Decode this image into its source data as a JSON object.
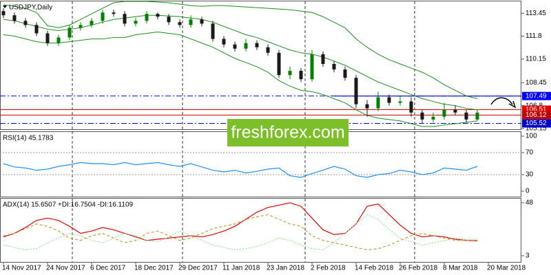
{
  "chart_data": [
    {
      "type": "candlestick",
      "title": "USDJPY,Daily",
      "watermark": "freshforex.com",
      "x": [
        0,
        2,
        4,
        6,
        8,
        10,
        12,
        14,
        16,
        18,
        20,
        22,
        24,
        26,
        28,
        30,
        32,
        34,
        36,
        38,
        40,
        42,
        44,
        46,
        48,
        50,
        52,
        54,
        56,
        58,
        60,
        62,
        64,
        66,
        68,
        70,
        72,
        74,
        76,
        78,
        80,
        82,
        84,
        86
      ],
      "open": [
        113.6,
        113.3,
        112.9,
        112.6,
        112.0,
        111.3,
        111.7,
        112.4,
        112.6,
        112.9,
        113.5,
        113.4,
        112.7,
        112.9,
        113.4,
        113.2,
        112.8,
        112.6,
        113.0,
        112.7,
        111.6,
        111.2,
        110.9,
        111.3,
        111.0,
        110.6,
        109.0,
        109.3,
        108.7,
        110.5,
        109.8,
        109.4,
        108.8,
        106.9,
        106.6,
        107.4,
        107.0,
        107.1,
        106.3,
        105.8,
        106.0,
        106.5,
        106.3,
        105.8
      ],
      "high": [
        113.8,
        113.5,
        113.1,
        112.8,
        112.2,
        111.9,
        112.6,
        112.8,
        113.1,
        113.7,
        113.7,
        113.6,
        113.1,
        113.6,
        113.5,
        113.4,
        113.0,
        113.3,
        113.2,
        112.9,
        111.8,
        111.4,
        111.6,
        111.5,
        111.2,
        110.8,
        109.6,
        109.5,
        110.8,
        110.7,
        110.0,
        109.6,
        109.0,
        107.2,
        107.8,
        107.6,
        107.5,
        107.4,
        106.5,
        106.3,
        107.0,
        106.8,
        106.5,
        106.5
      ],
      "low": [
        113.1,
        112.7,
        112.4,
        111.8,
        111.1,
        111.1,
        111.5,
        112.2,
        112.4,
        112.7,
        113.2,
        112.5,
        112.5,
        112.7,
        113.0,
        112.6,
        112.4,
        112.4,
        112.5,
        111.4,
        111.0,
        110.7,
        110.7,
        110.8,
        110.4,
        108.8,
        108.7,
        108.5,
        108.5,
        109.6,
        109.2,
        108.6,
        106.6,
        106.0,
        106.4,
        106.8,
        106.8,
        106.0,
        105.5,
        105.6,
        105.8,
        106.1,
        105.6,
        105.7
      ],
      "close": [
        113.3,
        112.9,
        112.6,
        112.0,
        111.3,
        111.7,
        112.4,
        112.6,
        112.9,
        113.5,
        113.4,
        112.7,
        112.9,
        113.4,
        113.2,
        112.8,
        112.6,
        113.0,
        112.7,
        111.6,
        111.2,
        110.9,
        111.3,
        111.0,
        110.6,
        109.0,
        109.3,
        108.7,
        110.5,
        109.8,
        109.4,
        108.8,
        106.9,
        106.6,
        107.4,
        107.0,
        107.1,
        106.3,
        105.8,
        106.0,
        106.5,
        106.3,
        105.8,
        106.3
      ],
      "up_color": "#008000",
      "down_color": "#1a1a1a",
      "series": [
        {
          "color": "#1e8c1e",
          "values": [
            114.05,
            113.95,
            113.8,
            113.5,
            112.55,
            112.4,
            112.6,
            113.0,
            113.4,
            113.8,
            114.2,
            114.3,
            114.3,
            114.3,
            114.25,
            114.2,
            114.1,
            114.0,
            113.95,
            114.0,
            114.0,
            113.95,
            113.9,
            113.85,
            113.8,
            113.75,
            113.7,
            113.6,
            113.5,
            113.2,
            112.8,
            112.4,
            111.6,
            111.0,
            110.5,
            110.1,
            109.8,
            109.5,
            109.2,
            108.8,
            108.3,
            107.9,
            107.5,
            107.3
          ]
        },
        {
          "color": "#1e8c1e",
          "values": [
            113.0,
            112.9,
            112.7,
            112.5,
            112.3,
            112.2,
            112.3,
            112.4,
            112.6,
            112.8,
            113.0,
            113.1,
            113.2,
            113.3,
            113.3,
            113.25,
            113.2,
            113.1,
            113.0,
            112.8,
            112.5,
            112.2,
            111.9,
            111.7,
            111.4,
            111.1,
            110.8,
            110.6,
            110.5,
            110.3,
            110.0,
            109.7,
            109.3,
            108.9,
            108.5,
            108.2,
            107.9,
            107.6,
            107.3,
            107.1,
            106.9,
            106.8,
            106.6,
            106.5
          ]
        },
        {
          "color": "#1e8c1e",
          "values": [
            111.9,
            111.8,
            111.6,
            111.4,
            111.3,
            111.3,
            111.4,
            111.5,
            111.6,
            111.6,
            111.7,
            111.7,
            111.9,
            112.0,
            112.1,
            112.0,
            111.9,
            111.6,
            111.3,
            111.0,
            110.6,
            110.2,
            109.9,
            109.6,
            109.2,
            108.6,
            108.2,
            107.9,
            107.8,
            107.6,
            107.3,
            107.0,
            106.5,
            106.1,
            105.9,
            105.8,
            105.7,
            105.5,
            105.3,
            105.3,
            105.4,
            105.5,
            105.6,
            105.7
          ]
        }
      ],
      "levels": [
        {
          "value": 107.49,
          "color": "#0000ff"
        },
        {
          "value": 106.51,
          "color": "#e00000"
        },
        {
          "value": 106.12,
          "color": "#c00000"
        },
        {
          "value": 105.52,
          "color": "#0000c8"
        }
      ],
      "xlim": [
        -0.625,
        94
      ],
      "ylim": [
        105.1,
        114.3
      ],
      "yticks": [
        113.45,
        111.8,
        110.15,
        108.45,
        106.8,
        105.15
      ]
    },
    {
      "type": "line",
      "title": "RSI(14) 45.1783",
      "x": [
        0,
        2,
        4,
        6,
        8,
        10,
        12,
        14,
        16,
        18,
        20,
        22,
        24,
        26,
        28,
        30,
        32,
        34,
        36,
        38,
        40,
        42,
        44,
        46,
        48,
        50,
        52,
        54,
        56,
        58,
        60,
        62,
        64,
        66,
        68,
        70,
        72,
        74,
        76,
        78,
        80,
        82,
        84,
        86
      ],
      "series": [
        {
          "color": "#1e90ff",
          "values": [
            50,
            44,
            42,
            38,
            40,
            45,
            48,
            52,
            50,
            50,
            48,
            52,
            48,
            50,
            52,
            48,
            45,
            50,
            44,
            38,
            35,
            38,
            33,
            36,
            40,
            42,
            28,
            25,
            32,
            38,
            45,
            40,
            28,
            25,
            30,
            32,
            38,
            35,
            30,
            33,
            42,
            40,
            38,
            45
          ]
        }
      ],
      "levels": [
        70,
        30
      ],
      "xlim": [
        -0.625,
        94
      ],
      "ylim": [
        -10,
        107.5
      ],
      "yticks": [
        100,
        70,
        30,
        0
      ]
    },
    {
      "type": "line",
      "title": "ADX(14) 15.6507 +DI:16.7504 -DI:16.1109",
      "x": [
        0,
        2,
        4,
        6,
        8,
        10,
        12,
        14,
        16,
        18,
        20,
        22,
        24,
        26,
        28,
        30,
        32,
        34,
        36,
        38,
        40,
        42,
        44,
        46,
        48,
        50,
        52,
        54,
        56,
        58,
        60,
        62,
        64,
        66,
        68,
        70,
        72,
        74,
        76,
        78,
        80,
        82,
        84,
        86
      ],
      "series": [
        {
          "color": "#e00000",
          "dash": "none",
          "values": [
            19,
            22,
            27,
            33,
            35,
            33,
            28,
            22,
            24,
            27,
            25,
            22,
            19,
            16,
            17,
            18,
            19,
            20,
            19,
            21,
            24,
            28,
            34,
            40,
            44,
            46,
            48,
            45,
            35,
            25,
            21,
            22,
            30,
            45,
            47,
            38,
            29,
            22,
            19,
            20,
            19,
            17,
            16,
            15.7
          ]
        },
        {
          "color": "#98e098",
          "dash": "2,2",
          "values": [
            12,
            10,
            8,
            9,
            14,
            18,
            22,
            20,
            16,
            14,
            18,
            22,
            20,
            16,
            15,
            19,
            24,
            20,
            16,
            12,
            10,
            8,
            9,
            11,
            14,
            18,
            16,
            12,
            9,
            8,
            14,
            22,
            30,
            38,
            34,
            25,
            18,
            15,
            12,
            14,
            16,
            18,
            17,
            16.8
          ]
        },
        {
          "color": "#b8a040",
          "dash": "4,3",
          "values": [
            20,
            22,
            26,
            30,
            28,
            24,
            18,
            16,
            20,
            22,
            18,
            14,
            16,
            22,
            24,
            20,
            16,
            18,
            22,
            26,
            28,
            30,
            34,
            36,
            38,
            34,
            30,
            28,
            20,
            16,
            14,
            12,
            10,
            8,
            9,
            12,
            16,
            20,
            22,
            20,
            18,
            16,
            16,
            16.1
          ]
        }
      ],
      "xlim": [
        -0.625,
        94
      ],
      "ylim": [
        -2.3,
        51.5
      ],
      "yticks": [
        48,
        3
      ],
      "xticks": [
        {
          "value": 0,
          "label": "14 Nov 2017"
        },
        {
          "value": 8,
          "label": "24 Nov 2017"
        },
        {
          "value": 16,
          "label": "6 Dec 2017"
        },
        {
          "value": 24,
          "label": "18 Dec 2017"
        },
        {
          "value": 32,
          "label": "29 Dec 2017"
        },
        {
          "value": 40,
          "label": "11 Jan 2018"
        },
        {
          "value": 48,
          "label": "23 Jan 2018"
        },
        {
          "value": 56,
          "label": "2 Feb 2018"
        },
        {
          "value": 64,
          "label": "14 Feb 2018"
        },
        {
          "value": 72,
          "label": "26 Feb 2018"
        },
        {
          "value": 80,
          "label": "8 Mar 2018"
        },
        {
          "value": 88,
          "label": "20 Mar 2018"
        }
      ]
    }
  ]
}
